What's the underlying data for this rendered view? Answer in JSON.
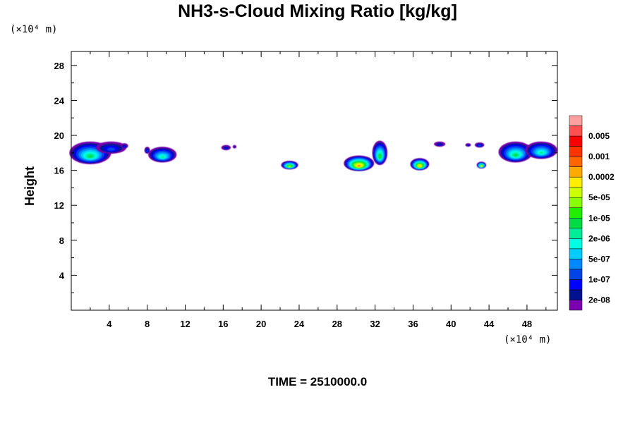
{
  "chart_data": {
    "type": "heatmap",
    "title": "NH3-s-Cloud Mixing Ratio [kg/kg]",
    "ylabel": "Height",
    "x_unit": "(×10⁴ m)",
    "y_unit": "(×10⁴ m)",
    "xlim": [
      0,
      51.2
    ],
    "ylim": [
      0,
      29.6
    ],
    "x_ticks": [
      "4",
      "8",
      "12",
      "16",
      "20",
      "24",
      "28",
      "32",
      "36",
      "40",
      "44",
      "48"
    ],
    "x_tick_values": [
      4,
      8,
      12,
      16,
      20,
      24,
      28,
      32,
      36,
      40,
      44,
      48
    ],
    "y_ticks": [
      "4",
      "8",
      "12",
      "16",
      "20",
      "24",
      "28"
    ],
    "y_tick_values": [
      4,
      8,
      12,
      16,
      20,
      24,
      28
    ],
    "colorbar": {
      "colors": [
        "#7a00b0",
        "#00128f",
        "#0000ff",
        "#0044e8",
        "#0088ff",
        "#00ccff",
        "#00ffe0",
        "#00ee99",
        "#00dd44",
        "#22ee00",
        "#88ff00",
        "#ccff00",
        "#ffee00",
        "#ffaa00",
        "#ff6600",
        "#ff3300",
        "#ff0000",
        "#ff5050",
        "#ffa0a0"
      ],
      "labels": [
        "2e-08",
        "1e-07",
        "5e-07",
        "2e-06",
        "1e-05",
        "5e-05",
        "0.0002",
        "0.001",
        "0.005"
      ]
    },
    "cloud_patches": [
      {
        "x": 2.0,
        "y": 18.0,
        "rx": 2.2,
        "ry": 1.3,
        "level": 8
      },
      {
        "x": 4.2,
        "y": 18.6,
        "rx": 1.6,
        "ry": 0.7,
        "level": 3
      },
      {
        "x": 5.6,
        "y": 18.8,
        "rx": 0.4,
        "ry": 0.3,
        "level": 2
      },
      {
        "x": 8.0,
        "y": 18.3,
        "rx": 0.3,
        "ry": 0.4,
        "level": 3
      },
      {
        "x": 9.6,
        "y": 17.8,
        "rx": 1.5,
        "ry": 0.9,
        "level": 7
      },
      {
        "x": 16.3,
        "y": 18.6,
        "rx": 0.5,
        "ry": 0.3,
        "level": 2
      },
      {
        "x": 17.2,
        "y": 18.7,
        "rx": 0.2,
        "ry": 0.2,
        "level": 1
      },
      {
        "x": 23.0,
        "y": 16.6,
        "rx": 0.9,
        "ry": 0.5,
        "level": 11
      },
      {
        "x": 30.3,
        "y": 16.8,
        "rx": 1.6,
        "ry": 0.9,
        "level": 14
      },
      {
        "x": 32.5,
        "y": 18.0,
        "rx": 0.8,
        "ry": 1.4,
        "level": 9
      },
      {
        "x": 36.7,
        "y": 16.7,
        "rx": 1.0,
        "ry": 0.7,
        "level": 13
      },
      {
        "x": 38.8,
        "y": 19.0,
        "rx": 0.6,
        "ry": 0.3,
        "level": 2
      },
      {
        "x": 41.8,
        "y": 18.9,
        "rx": 0.3,
        "ry": 0.2,
        "level": 2
      },
      {
        "x": 43.2,
        "y": 16.6,
        "rx": 0.5,
        "ry": 0.4,
        "level": 12
      },
      {
        "x": 43.0,
        "y": 18.9,
        "rx": 0.5,
        "ry": 0.3,
        "level": 3
      },
      {
        "x": 46.8,
        "y": 18.1,
        "rx": 1.8,
        "ry": 1.2,
        "level": 8
      },
      {
        "x": 49.5,
        "y": 18.3,
        "rx": 1.7,
        "ry": 1.0,
        "level": 7
      }
    ]
  },
  "time_label": "TIME = 2510000.0"
}
